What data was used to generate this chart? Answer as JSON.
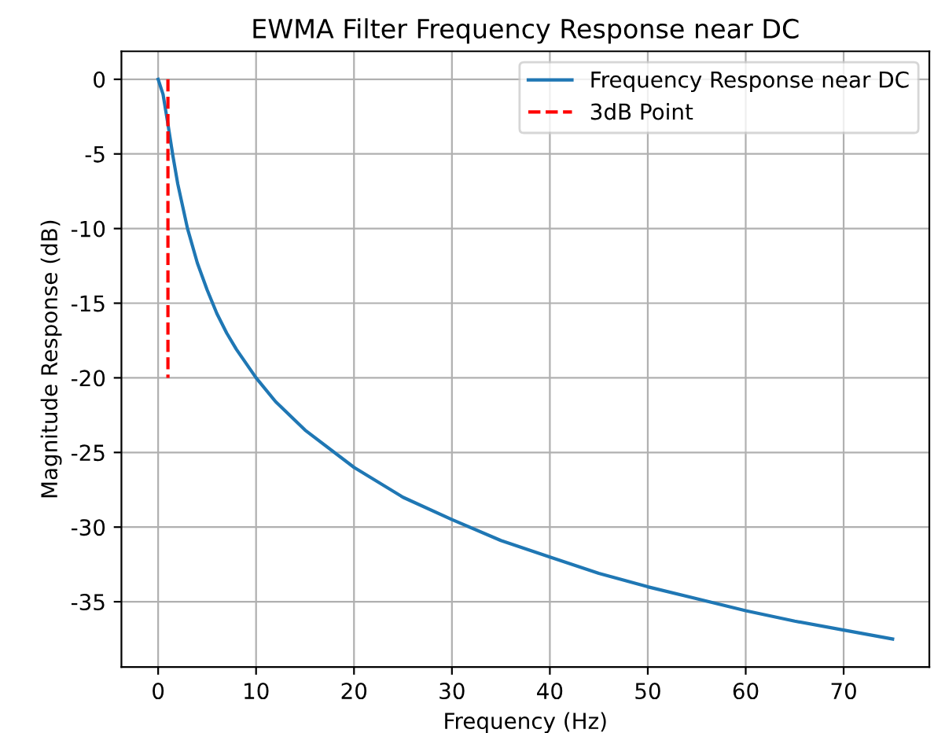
{
  "chart_data": {
    "type": "line",
    "title": "EWMA Filter Frequency Response near DC",
    "xlabel": "Frequency (Hz)",
    "ylabel": "Magnitude Response (dB)",
    "xlim": [
      -3.75,
      78.75
    ],
    "xticks": [
      0,
      10,
      20,
      30,
      40,
      50,
      60,
      70
    ],
    "ylim": [
      -39.375,
      1.875
    ],
    "yticks": [
      0,
      -5,
      -10,
      -15,
      -20,
      -25,
      -30,
      -35
    ],
    "grid": true,
    "legend": "top right",
    "series": [
      {
        "name": "Frequency Response near DC",
        "color": "#1f77b4",
        "line_style": "solid",
        "x": [
          0,
          0.5,
          1,
          1.5,
          2,
          3,
          4,
          5,
          6,
          7,
          8,
          10,
          12,
          15,
          20,
          25,
          30,
          35,
          40,
          45,
          50,
          55,
          60,
          65,
          70,
          75
        ],
        "values": [
          0,
          -1.0,
          -3.0,
          -5.1,
          -7.0,
          -10.0,
          -12.3,
          -14.1,
          -15.7,
          -17.0,
          -18.1,
          -20.0,
          -21.6,
          -23.5,
          -26.0,
          -28.0,
          -29.5,
          -30.9,
          -32.0,
          -33.1,
          -34.0,
          -34.8,
          -35.6,
          -36.3,
          -36.9,
          -37.5
        ]
      },
      {
        "name": "3dB Point",
        "color": "#ff0000",
        "line_style": "dashed",
        "x": [
          1,
          1
        ],
        "values": [
          0,
          -20
        ]
      }
    ]
  }
}
